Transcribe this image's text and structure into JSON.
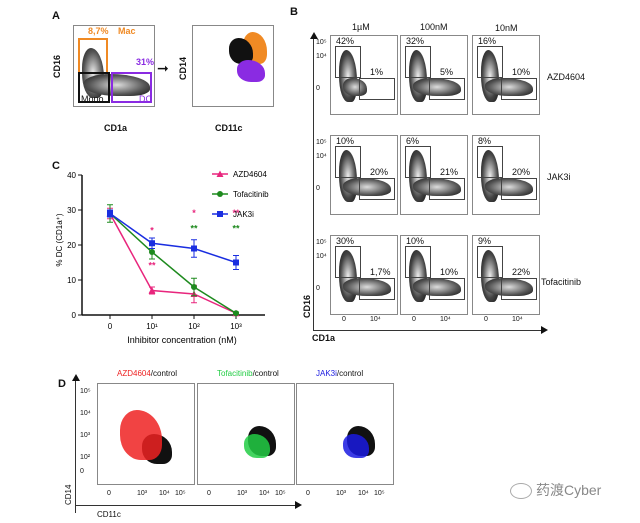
{
  "panelA": {
    "label": "A",
    "left": {
      "ylabel": "CD16",
      "xlabel": "CD1a",
      "mac_pct": "8,7%",
      "mac_label": "Mac",
      "dc_pct": "31%",
      "dc_label": "DC",
      "mono_label": "Mono"
    },
    "right": {
      "ylabel": "CD14",
      "xlabel": "CD11c"
    },
    "colors": {
      "mac": "#f08a24",
      "dc": "#8a2be2",
      "mono": "#111111"
    }
  },
  "panelB": {
    "label": "B",
    "columns": [
      "1µM",
      "100nM",
      "10nM"
    ],
    "rows": [
      {
        "name": "AZD4604",
        "upper": [
          "42%",
          "32%",
          "16%"
        ],
        "lower": [
          "1%",
          "5%",
          "10%"
        ]
      },
      {
        "name": "JAK3i",
        "upper": [
          "10%",
          "6%",
          "8%"
        ],
        "lower": [
          "20%",
          "21%",
          "20%"
        ]
      },
      {
        "name": "Tofacitinib",
        "upper": [
          "30%",
          "10%",
          "9%"
        ],
        "lower": [
          "1,7%",
          "10%",
          "22%"
        ]
      }
    ],
    "ylabel": "CD16",
    "xlabel": "CD1a",
    "yticks": [
      "10⁵",
      "10⁴",
      "0"
    ],
    "xticks": [
      "0",
      "10⁴"
    ]
  },
  "chart_data": {
    "type": "line",
    "panel_label": "C",
    "title": "",
    "xlabel": "Inhibitor concentration (nM)",
    "ylabel": "% DC (CD1a⁺)",
    "categories": [
      "0",
      "10¹",
      "10²",
      "10³"
    ],
    "ylim": [
      0,
      40
    ],
    "yticks": [
      0,
      10,
      20,
      30,
      40
    ],
    "legend_position": "top-right",
    "series": [
      {
        "name": "AZD4604",
        "color": "#e8267d",
        "marker": "triangle",
        "values": [
          29,
          7,
          6,
          0.5
        ],
        "errors": [
          1.5,
          1,
          2.5,
          0.3
        ]
      },
      {
        "name": "Tofacitinib",
        "color": "#1e8a1e",
        "marker": "circle",
        "values": [
          29,
          18,
          8,
          0.5
        ],
        "errors": [
          2.5,
          2,
          2.5,
          0.3
        ]
      },
      {
        "name": "JAK3i",
        "color": "#1a2ee0",
        "marker": "square",
        "values": [
          29,
          20.5,
          19,
          15
        ],
        "errors": [
          1,
          1.5,
          2.5,
          2
        ]
      }
    ],
    "significance": [
      {
        "x": "10¹",
        "marks": [
          {
            "text": "*",
            "color": "#e8267d",
            "pos": "above"
          },
          {
            "text": "**",
            "color": "#e8267d",
            "pos": "below"
          }
        ]
      },
      {
        "x": "10²",
        "marks": [
          {
            "text": "*",
            "color": "#e8267d",
            "pos": "top"
          },
          {
            "text": "**",
            "color": "#1e8a1e",
            "pos": "second"
          }
        ]
      },
      {
        "x": "10³",
        "marks": [
          {
            "text": "**",
            "color": "#e8267d",
            "pos": "top"
          },
          {
            "text": "**",
            "color": "#1e8a1e",
            "pos": "second"
          }
        ]
      }
    ]
  },
  "panelD": {
    "label": "D",
    "plots": [
      {
        "drug": "AZD4604",
        "suffix": "/control",
        "color": "#ee2222"
      },
      {
        "drug": "Tofacitinib",
        "suffix": "/control",
        "color": "#22cc44"
      },
      {
        "drug": "JAK3i",
        "suffix": "/control",
        "color": "#1a1ae0"
      }
    ],
    "ylabel": "CD14",
    "xlabel": "CD11c",
    "yticks": [
      "10⁵",
      "10⁴",
      "10³",
      "10²",
      "0"
    ],
    "xticks": [
      "0",
      "10³",
      "10⁴",
      "10⁵"
    ]
  },
  "watermark": {
    "text": "药渡Cyber"
  }
}
